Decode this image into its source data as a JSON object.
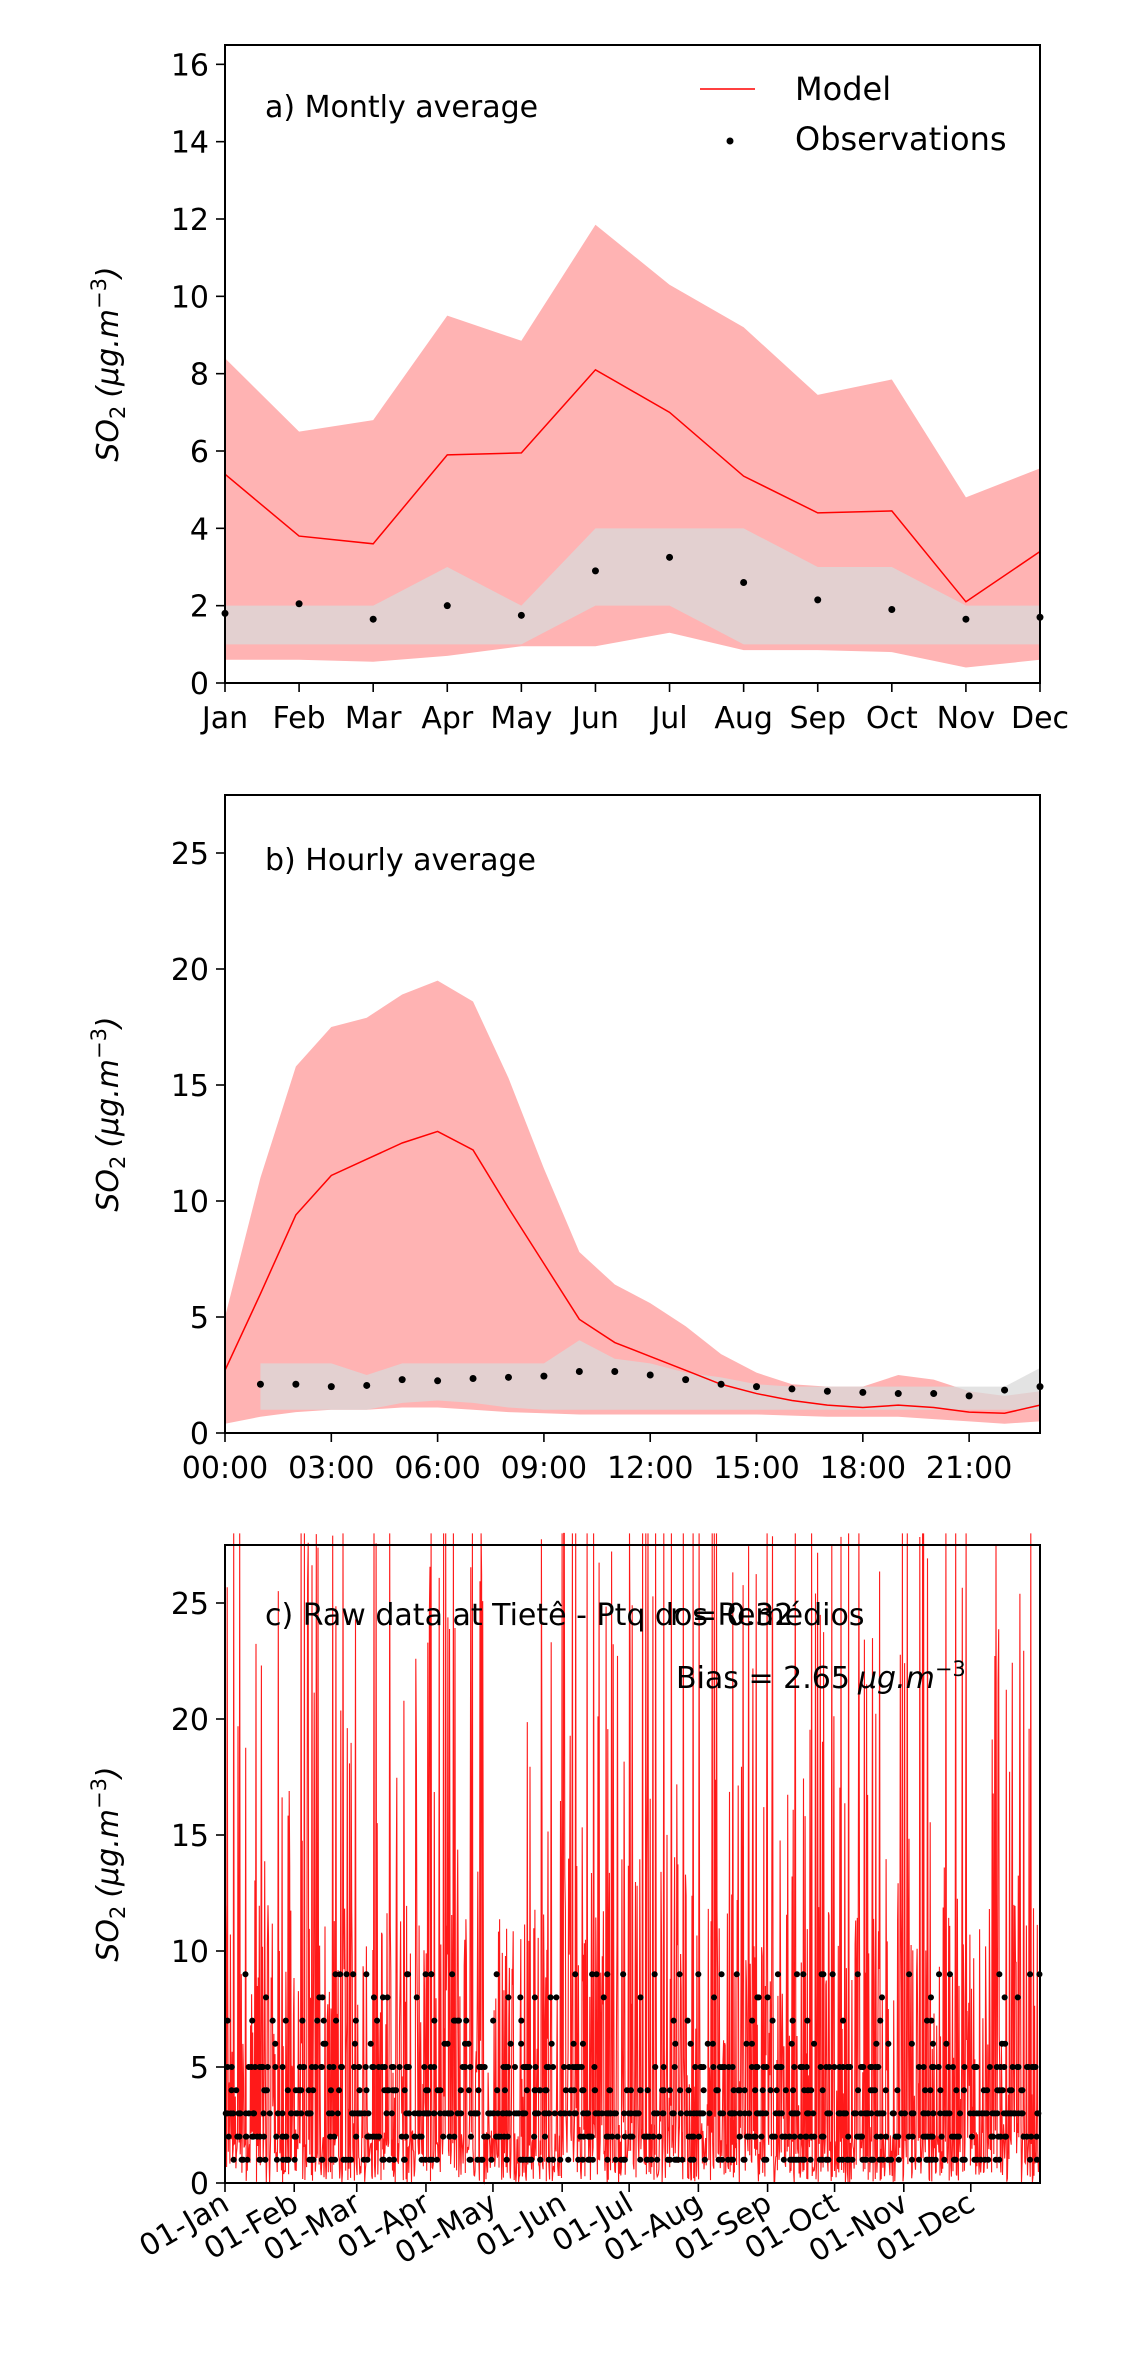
{
  "colors": {
    "model": "#ff0000",
    "model_band": "#ffb3b3",
    "obs": "#000000",
    "obs_band": "#d9d9d9",
    "overlap_band": "#c8a6a6"
  },
  "legend": {
    "model": "Model",
    "observations": "Observations"
  },
  "chart_data": [
    {
      "type": "line",
      "title": "a) Montly average",
      "ylabel": "SO",
      "ylabel_sub": "2",
      "ylabel_unit": "(μg.m",
      "ylabel_exp": "−3",
      "ylim": [
        0,
        16.5
      ],
      "yticks": [
        "0",
        "2",
        "4",
        "6",
        "8",
        "10",
        "12",
        "14",
        "16"
      ],
      "categories": [
        "Jan",
        "Feb",
        "Mar",
        "Apr",
        "May",
        "Jun",
        "Jul",
        "Aug",
        "Sep",
        "Oct",
        "Nov",
        "Dec"
      ],
      "series": [
        {
          "name": "Model",
          "values": [
            5.4,
            3.8,
            3.6,
            5.9,
            5.95,
            8.1,
            7.0,
            5.35,
            4.4,
            4.45,
            2.1,
            3.4
          ]
        },
        {
          "name": "Observations",
          "values": [
            1.8,
            2.05,
            1.65,
            2.0,
            1.75,
            2.9,
            3.25,
            2.6,
            2.15,
            1.9,
            1.65,
            1.7
          ]
        }
      ],
      "model_band": {
        "upper": [
          8.4,
          6.5,
          6.8,
          9.5,
          8.85,
          11.85,
          10.3,
          9.2,
          7.45,
          7.85,
          4.8,
          5.55
        ],
        "lower": [
          0.6,
          0.6,
          0.55,
          0.7,
          0.95,
          0.95,
          1.3,
          0.85,
          0.85,
          0.8,
          0.4,
          0.6
        ]
      },
      "obs_band": {
        "upper": [
          2,
          2,
          2,
          3,
          2,
          4,
          4,
          4,
          3,
          3,
          2,
          2
        ],
        "lower": [
          1,
          1,
          1,
          1,
          1,
          2,
          2,
          1,
          1,
          1,
          1,
          1
        ]
      }
    },
    {
      "type": "line",
      "title": "b) Hourly average",
      "ylabel": "SO",
      "ylabel_sub": "2",
      "ylabel_unit": "(μg.m",
      "ylabel_exp": "−3",
      "ylim": [
        0,
        27.5
      ],
      "yticks": [
        "0",
        "5",
        "10",
        "15",
        "20",
        "25"
      ],
      "xticks": [
        "00:00",
        "03:00",
        "06:00",
        "09:00",
        "12:00",
        "15:00",
        "18:00",
        "21:00"
      ],
      "hours": [
        0,
        1,
        2,
        3,
        4,
        5,
        6,
        7,
        8,
        9,
        10,
        11,
        12,
        13,
        14,
        15,
        16,
        17,
        18,
        19,
        20,
        21,
        22,
        23
      ],
      "series": [
        {
          "name": "Model",
          "values": [
            2.7,
            6.0,
            9.4,
            11.1,
            11.8,
            12.5,
            13.0,
            12.2,
            9.7,
            7.3,
            4.9,
            3.9,
            3.3,
            2.7,
            2.1,
            1.7,
            1.4,
            1.2,
            1.1,
            1.2,
            1.1,
            0.9,
            0.85,
            1.2
          ]
        },
        {
          "name": "Observations",
          "values": [
            null,
            2.1,
            2.1,
            2.0,
            2.05,
            2.3,
            2.25,
            2.35,
            2.4,
            2.45,
            2.65,
            2.65,
            2.5,
            2.3,
            2.1,
            2.0,
            1.9,
            1.8,
            1.75,
            1.7,
            1.7,
            1.6,
            1.85,
            2.0
          ]
        }
      ],
      "model_band": {
        "upper": [
          5.0,
          11.0,
          15.8,
          17.5,
          17.9,
          18.9,
          19.5,
          18.6,
          15.3,
          11.4,
          7.8,
          6.4,
          5.6,
          4.6,
          3.4,
          2.6,
          2.1,
          2.0,
          2.0,
          2.5,
          2.3,
          1.8,
          1.6,
          1.8
        ],
        "lower": [
          0.4,
          0.7,
          0.9,
          1.0,
          1.0,
          1.1,
          1.1,
          1.0,
          0.9,
          0.85,
          0.8,
          0.8,
          0.8,
          0.8,
          0.8,
          0.8,
          0.75,
          0.7,
          0.7,
          0.7,
          0.6,
          0.5,
          0.4,
          0.5
        ]
      },
      "obs_band": {
        "upper": [
          null,
          3,
          3,
          3,
          2.5,
          3,
          3,
          3,
          3,
          3,
          4,
          3.2,
          3,
          2.6,
          2.4,
          2.1,
          2,
          2,
          2,
          2,
          2,
          2,
          2,
          2.8
        ],
        "lower": [
          null,
          1,
          1,
          1,
          1,
          1.3,
          1.4,
          1.3,
          1.1,
          1,
          1,
          1,
          1,
          1,
          1,
          1,
          1,
          1,
          1,
          1,
          1,
          1,
          1,
          1
        ]
      }
    },
    {
      "type": "line",
      "title": "c) Raw data at  Tietê - Ptq dos Remédios",
      "r_text": "r = 0.32",
      "bias_text": "Bias = 2.65",
      "bias_unit": "μg.m",
      "bias_exp": "−3",
      "ylabel": "SO",
      "ylabel_sub": "2",
      "ylabel_unit": "(μg.m",
      "ylabel_exp": "−3",
      "ylim": [
        0,
        27.5
      ],
      "yticks": [
        "0",
        "5",
        "10",
        "15",
        "20",
        "25"
      ],
      "xticks": [
        "01-Jan",
        "01-Feb",
        "01-Mar",
        "01-Apr",
        "01-May",
        "01-Jun",
        "01-Jul",
        "01-Aug",
        "01-Sep",
        "01-Oct",
        "01-Nov",
        "01-Dec"
      ],
      "xtick_days": [
        0,
        31,
        59,
        90,
        120,
        151,
        181,
        212,
        243,
        273,
        304,
        334
      ],
      "xlim_days": [
        0,
        365
      ],
      "obs_levels": [
        1,
        2,
        3,
        4,
        5,
        6,
        7,
        8,
        9
      ]
    }
  ]
}
